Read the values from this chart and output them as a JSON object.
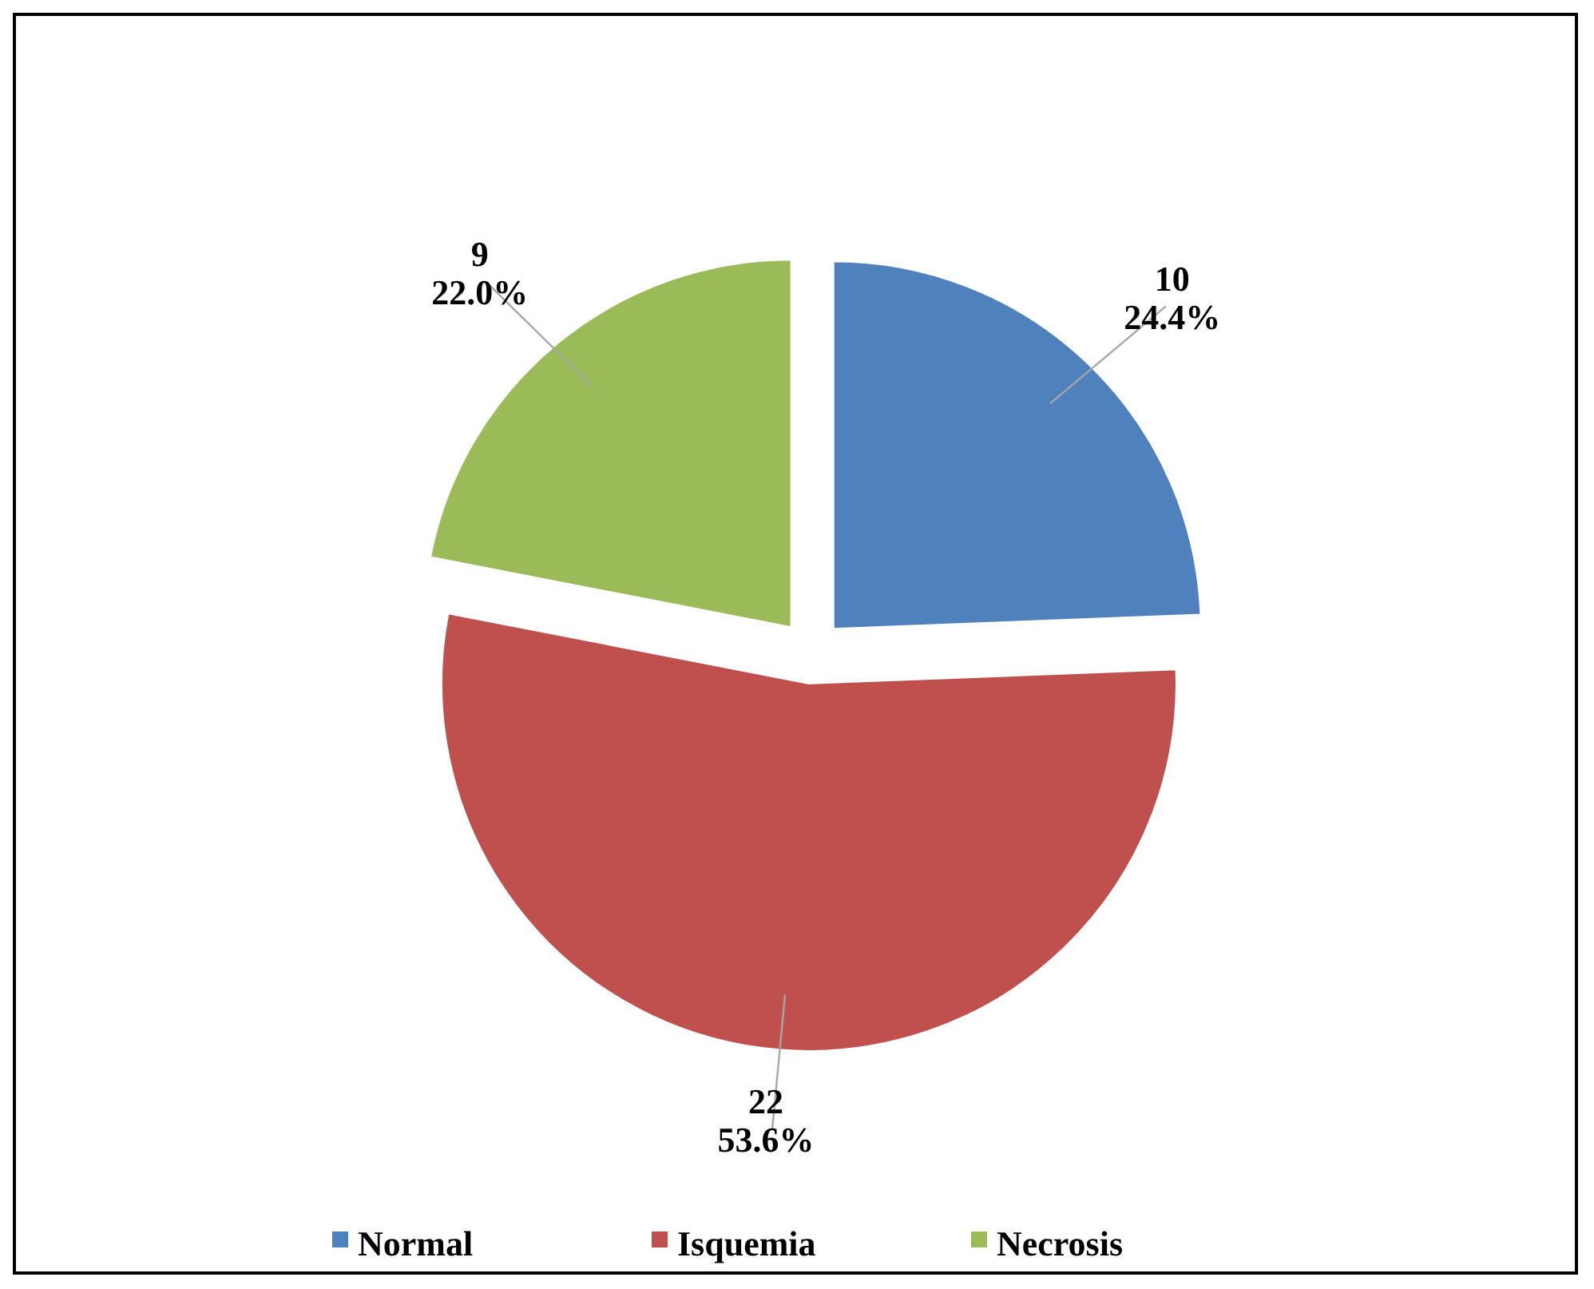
{
  "chart_data": {
    "type": "pie",
    "categories": [
      "Normal",
      "Isquemia",
      "Necrosis"
    ],
    "values": [
      10,
      22,
      9
    ],
    "colors": [
      "#4f81bd",
      "#c0504d",
      "#9bbb59"
    ],
    "value_labels": [
      "10\n24.4%",
      "22\n53.6%",
      "9\n22.0%"
    ],
    "legend": "bottom"
  }
}
